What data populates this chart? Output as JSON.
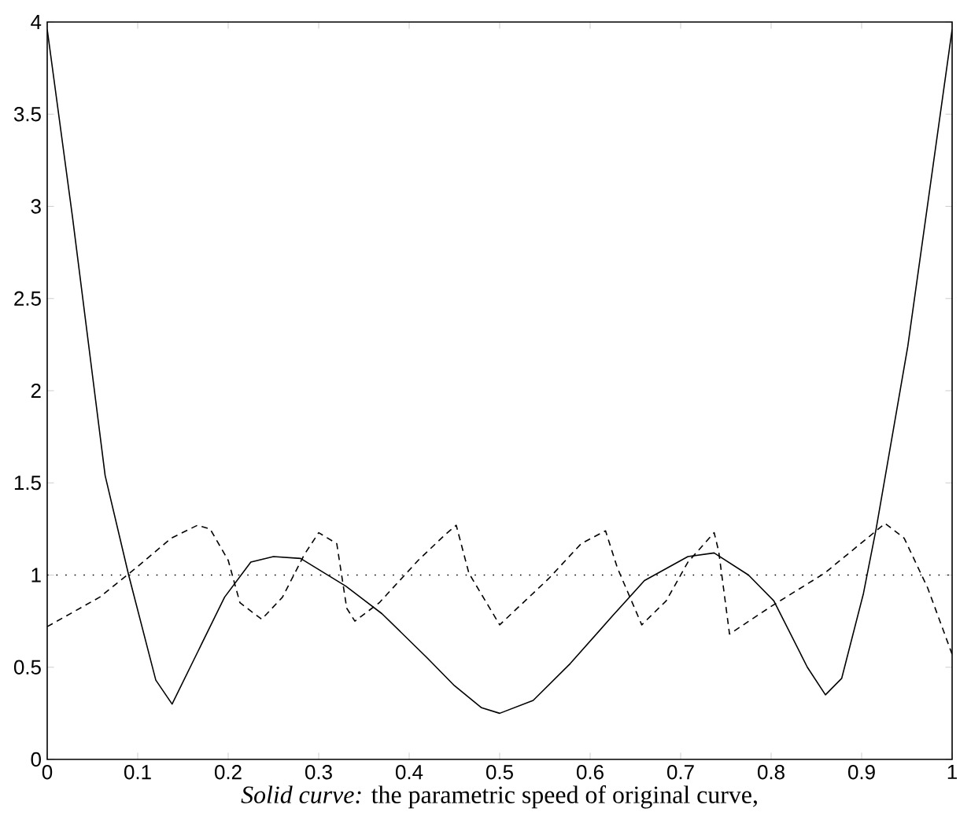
{
  "chart_data": {
    "type": "line",
    "xlabel": "*Solid curve:* the parametric speed of original curve,",
    "xlim": [
      0,
      1
    ],
    "ylim": [
      0,
      4
    ],
    "xticks": [
      0,
      0.1,
      0.2,
      0.3,
      0.4,
      0.5,
      0.6,
      0.7,
      0.8,
      0.9,
      1
    ],
    "yticks": [
      0,
      0.5,
      1,
      1.5,
      2,
      2.5,
      3,
      3.5,
      4
    ],
    "grid": false,
    "marker": "none",
    "series": [
      {
        "color": "#000000",
        "line_style": "solid",
        "x": [
          0,
          0.028,
          0.064,
          0.09,
          0.12,
          0.138,
          0.166,
          0.196,
          0.225,
          0.25,
          0.28,
          0.33,
          0.37,
          0.42,
          0.45,
          0.48,
          0.5,
          0.537,
          0.578,
          0.625,
          0.66,
          0.708,
          0.737,
          0.775,
          0.803,
          0.84,
          0.86,
          0.878,
          0.902,
          0.916,
          0.951,
          1.0
        ],
        "values": [
          3.96,
          2.94,
          1.54,
          1.0,
          0.43,
          0.3,
          0.58,
          0.88,
          1.07,
          1.1,
          1.09,
          0.94,
          0.79,
          0.55,
          0.4,
          0.28,
          0.25,
          0.32,
          0.52,
          0.78,
          0.97,
          1.1,
          1.12,
          1.0,
          0.86,
          0.5,
          0.35,
          0.44,
          0.9,
          1.25,
          2.24,
          3.96
        ]
      },
      {
        "color": "#000000",
        "line_style": "dashed",
        "x": [
          0,
          0.058,
          0.096,
          0.137,
          0.166,
          0.18,
          0.2,
          0.213,
          0.237,
          0.26,
          0.284,
          0.3,
          0.32,
          0.331,
          0.34,
          0.367,
          0.41,
          0.44,
          0.452,
          0.466,
          0.5,
          0.554,
          0.59,
          0.617,
          0.63,
          0.657,
          0.684,
          0.708,
          0.737,
          0.742,
          0.754,
          0.8,
          0.859,
          0.926,
          0.947,
          0.973,
          1.0
        ],
        "values": [
          0.72,
          0.88,
          1.03,
          1.2,
          1.27,
          1.25,
          1.08,
          0.85,
          0.76,
          0.88,
          1.11,
          1.23,
          1.17,
          0.82,
          0.75,
          0.85,
          1.08,
          1.22,
          1.27,
          1.01,
          0.73,
          0.98,
          1.17,
          1.24,
          1.04,
          0.73,
          0.86,
          1.07,
          1.23,
          1.13,
          0.68,
          0.83,
          1.01,
          1.28,
          1.2,
          0.93,
          0.57
        ]
      }
    ],
    "ref_lines": [
      {
        "axis": "y",
        "value": 1,
        "color": "#000000",
        "line_style": "dotted"
      }
    ]
  }
}
